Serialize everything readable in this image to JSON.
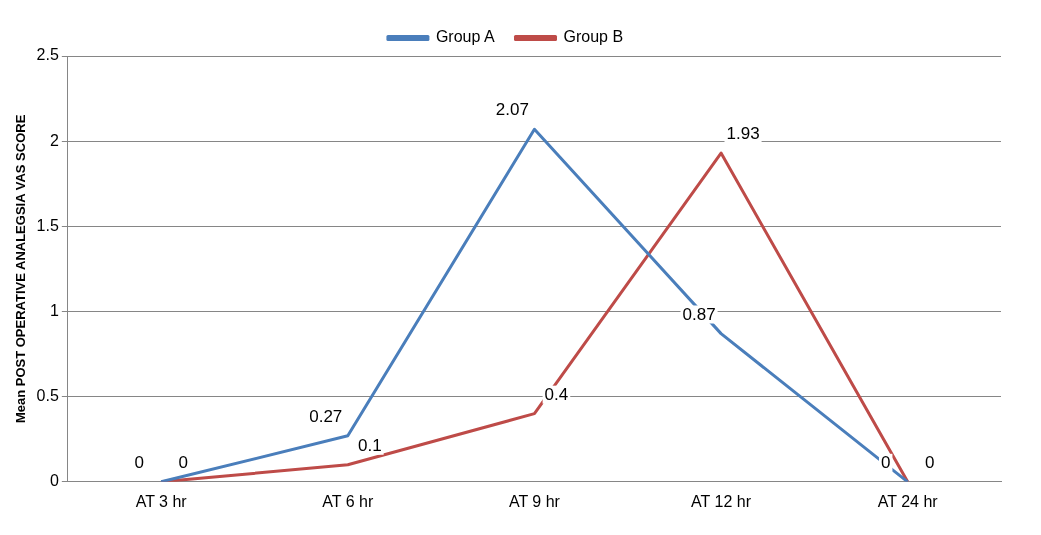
{
  "chart_data": {
    "type": "line",
    "ylabel": "Mean POST OPERATIVE ANALEGSIA VAS SCORE",
    "categories": [
      "AT 3 hr",
      "AT 6 hr",
      "AT 9 hr",
      "AT 12 hr",
      "AT 24 hr"
    ],
    "series": [
      {
        "name": "Group A",
        "color": "#4a7ebb",
        "values": [
          0,
          0.27,
          2.07,
          0.87,
          0
        ]
      },
      {
        "name": "Group B",
        "color": "#be4b48",
        "values": [
          0,
          0.1,
          0.4,
          1.93,
          0
        ]
      }
    ],
    "ylim": [
      0,
      2.5
    ],
    "yticks": [
      0,
      0.5,
      1,
      1.5,
      2,
      2.5
    ],
    "grid": "y",
    "legend": "top",
    "marker": "none",
    "line_style": "solid",
    "data_labels": true
  }
}
